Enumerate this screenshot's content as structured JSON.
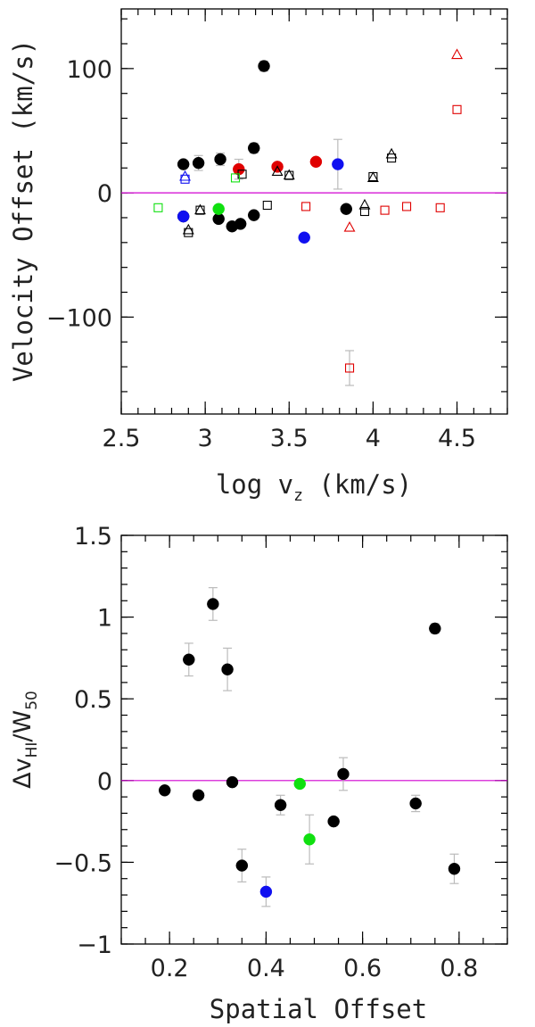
{
  "chart_data": [
    {
      "type": "scatter",
      "title": "",
      "xlabel": "log v",
      "xlabel_sub": "z",
      "xlabel_unit": " (km/s)",
      "ylabel": "Velocity Offset (km/s)",
      "xlim": [
        2.5,
        4.8
      ],
      "ylim": [
        -178,
        148
      ],
      "xticks": [
        2.5,
        3,
        3.5,
        4,
        4.5
      ],
      "xtick_labels": [
        "2.5",
        "3",
        "3.5",
        "4",
        "4.5"
      ],
      "yticks": [
        100,
        0,
        -100
      ],
      "ytick_labels": [
        "100",
        "0",
        "−100"
      ],
      "hline": 0,
      "hline_color": "#d000d0",
      "colors": {
        "black": "#000000",
        "red": "#e00000",
        "blue": "#1010f0",
        "green": "#10e010"
      },
      "series": [
        {
          "marker": "filled-circle",
          "color": "black",
          "points": [
            [
              2.87,
              23
            ],
            [
              2.96,
              24
            ],
            [
              3.09,
              27
            ],
            [
              3.29,
              36
            ],
            [
              3.35,
              102
            ],
            [
              2.87,
              -19
            ],
            [
              3.08,
              -21
            ],
            [
              3.16,
              -27
            ],
            [
              3.21,
              -25
            ],
            [
              3.29,
              -18
            ],
            [
              3.84,
              -13
            ]
          ],
          "errors": [
            0,
            6,
            5,
            4,
            4,
            0,
            0,
            0,
            0,
            0,
            0
          ]
        },
        {
          "marker": "filled-circle",
          "color": "red",
          "points": [
            [
              3.2,
              19
            ],
            [
              3.43,
              21
            ],
            [
              3.66,
              25
            ]
          ],
          "errors": [
            8,
            0,
            0
          ]
        },
        {
          "marker": "filled-circle",
          "color": "blue",
          "points": [
            [
              2.87,
              -19
            ],
            [
              3.59,
              -36
            ],
            [
              3.79,
              23
            ]
          ],
          "errors": [
            0,
            0,
            20
          ]
        },
        {
          "marker": "filled-circle",
          "color": "green",
          "points": [
            [
              3.08,
              -13
            ]
          ],
          "errors": [
            0
          ]
        },
        {
          "marker": "open-square",
          "color": "black",
          "points": [
            [
              2.9,
              -32
            ],
            [
              2.97,
              -14
            ],
            [
              3.22,
              15
            ],
            [
              3.37,
              -10
            ],
            [
              3.5,
              14
            ],
            [
              3.95,
              -15
            ],
            [
              4.0,
              13
            ],
            [
              4.11,
              28
            ]
          ]
        },
        {
          "marker": "open-triangle",
          "color": "black",
          "points": [
            [
              2.9,
              -30
            ],
            [
              2.97,
              -14
            ],
            [
              3.43,
              17
            ],
            [
              3.5,
              14
            ],
            [
              3.95,
              -10
            ],
            [
              4.0,
              12
            ],
            [
              4.11,
              31
            ]
          ]
        },
        {
          "marker": "open-square",
          "color": "red",
          "points": [
            [
              3.6,
              -11
            ],
            [
              3.86,
              -141
            ],
            [
              4.07,
              -14
            ],
            [
              4.2,
              -11
            ],
            [
              4.4,
              -12
            ],
            [
              4.5,
              67
            ]
          ],
          "errors": [
            0,
            14,
            0,
            0,
            0,
            0
          ]
        },
        {
          "marker": "open-triangle",
          "color": "red",
          "points": [
            [
              3.86,
              -28
            ],
            [
              4.5,
              111
            ]
          ]
        },
        {
          "marker": "open-square",
          "color": "green",
          "points": [
            [
              2.72,
              -12
            ],
            [
              3.18,
              12
            ]
          ]
        },
        {
          "marker": "open-square",
          "color": "blue",
          "points": [
            [
              2.88,
              11
            ]
          ]
        },
        {
          "marker": "open-triangle",
          "color": "blue",
          "points": [
            [
              2.88,
              13
            ]
          ]
        }
      ]
    },
    {
      "type": "scatter",
      "title": "",
      "xlabel": "Spatial Offset",
      "ylabel": "Δv",
      "ylabel_sub": "HI",
      "ylabel_mid": "/W",
      "ylabel_sub2": "50",
      "xlim": [
        0.1,
        0.9
      ],
      "ylim": [
        -1,
        1.5
      ],
      "xticks": [
        0.2,
        0.4,
        0.6,
        0.8
      ],
      "xtick_labels": [
        "0.2",
        "0.4",
        "0.6",
        "0.8"
      ],
      "yticks": [
        1.5,
        1,
        0.5,
        0,
        -0.5,
        -1
      ],
      "ytick_labels": [
        "1.5",
        "1",
        "0.5",
        "0",
        "−0.5",
        "−1"
      ],
      "hline": 0,
      "hline_color": "#d000d0",
      "series": [
        {
          "marker": "filled-circle",
          "color": "black",
          "points": [
            [
              0.19,
              -0.06
            ],
            [
              0.24,
              0.74
            ],
            [
              0.26,
              -0.09
            ],
            [
              0.29,
              1.08
            ],
            [
              0.32,
              0.68
            ],
            [
              0.33,
              -0.01
            ],
            [
              0.35,
              -0.52
            ],
            [
              0.43,
              -0.15
            ],
            [
              0.54,
              -0.25
            ],
            [
              0.56,
              0.04
            ],
            [
              0.71,
              -0.14
            ],
            [
              0.75,
              0.93
            ],
            [
              0.79,
              -0.54
            ]
          ],
          "errors": [
            0,
            0.1,
            0,
            0.1,
            0.13,
            0,
            0.1,
            0.06,
            0,
            0.1,
            0.05,
            0.03,
            0.09
          ]
        },
        {
          "marker": "filled-circle",
          "color": "blue",
          "points": [
            [
              0.4,
              -0.68
            ]
          ],
          "errors": [
            0.09
          ]
        },
        {
          "marker": "filled-circle",
          "color": "green",
          "points": [
            [
              0.47,
              -0.02
            ],
            [
              0.49,
              -0.36
            ]
          ],
          "errors": [
            0,
            0.15
          ]
        }
      ]
    }
  ]
}
